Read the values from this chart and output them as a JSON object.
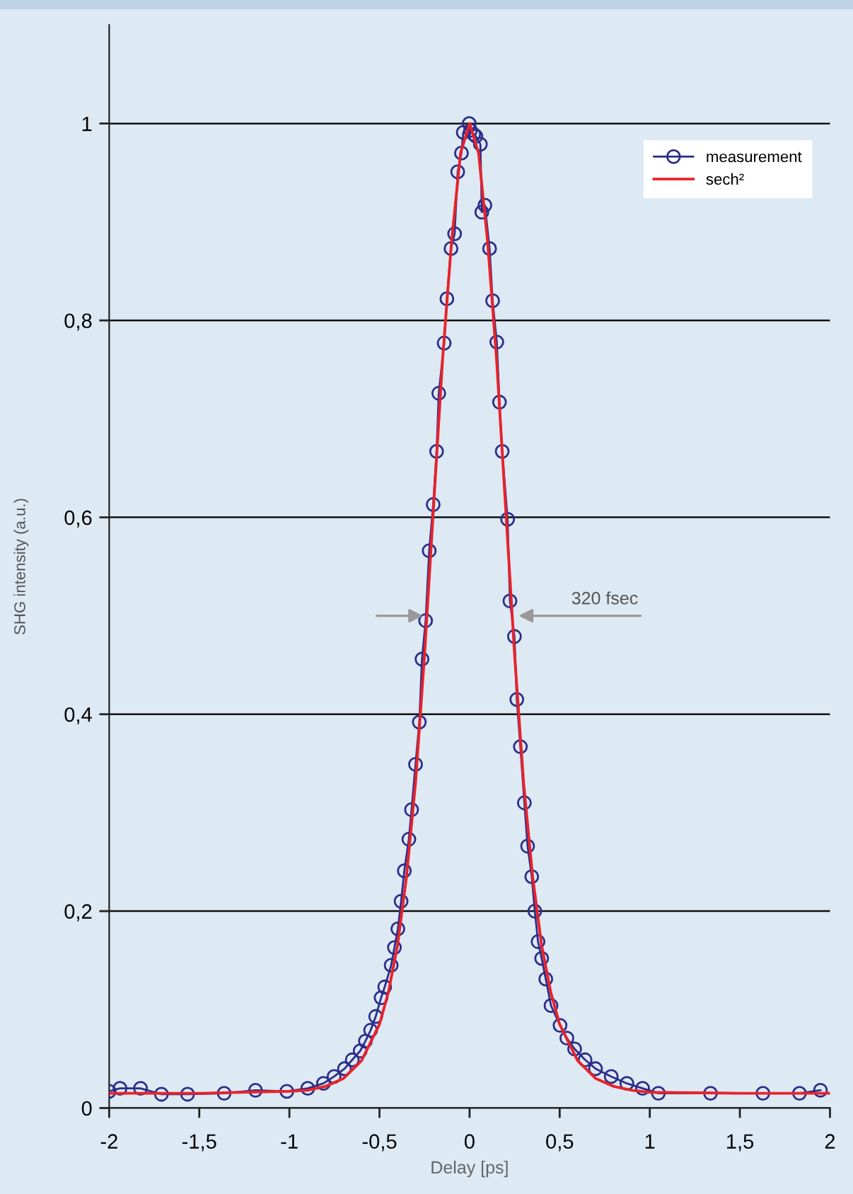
{
  "chart_data": {
    "type": "line",
    "xlabel": "Delay [ps]",
    "ylabel": "SHG intensity (a.u.)",
    "xlim": [
      -2,
      2
    ],
    "ylim": [
      0,
      1.1
    ],
    "xticks": [
      {
        "value": -2,
        "label": "-2"
      },
      {
        "value": -1.5,
        "label": "-1,5"
      },
      {
        "value": -1,
        "label": "-1"
      },
      {
        "value": -0.5,
        "label": "-0,5"
      },
      0,
      {
        "value": 0.5,
        "label": "0,5"
      },
      1,
      {
        "value": 1.5,
        "label": "1,5"
      },
      2
    ],
    "yticks": [
      0,
      {
        "value": 0.2,
        "label": "0,2"
      },
      {
        "value": 0.4,
        "label": "0,4"
      },
      {
        "value": 0.6,
        "label": "0,6"
      },
      {
        "value": 0.8,
        "label": "0,8"
      },
      1
    ],
    "grid": "y",
    "legend": "top right",
    "series": [
      {
        "name": "measurement",
        "color": "#2b2d8a",
        "marker": "circle",
        "x": [
          -2.0,
          -1.94,
          -1.826,
          -1.71,
          -1.565,
          -1.362,
          -1.188,
          -1.014,
          -0.898,
          -0.811,
          -0.752,
          -0.694,
          -0.651,
          -0.607,
          -0.578,
          -0.549,
          -0.521,
          -0.491,
          -0.471,
          -0.435,
          -0.417,
          -0.398,
          -0.38,
          -0.362,
          -0.337,
          -0.322,
          -0.3,
          -0.279,
          -0.264,
          -0.244,
          -0.224,
          -0.202,
          -0.183,
          -0.171,
          -0.141,
          -0.126,
          -0.103,
          -0.083,
          -0.066,
          -0.045,
          -0.035,
          -0.002,
          0.005,
          0.023,
          0.035,
          0.06,
          0.068,
          0.085,
          0.111,
          0.128,
          0.151,
          0.166,
          0.181,
          0.211,
          0.224,
          0.249,
          0.262,
          0.282,
          0.304,
          0.322,
          0.345,
          0.362,
          0.38,
          0.4,
          0.423,
          0.452,
          0.502,
          0.54,
          0.583,
          0.641,
          0.699,
          0.786,
          0.873,
          0.96,
          1.048,
          1.337,
          1.628,
          1.831,
          1.947
        ],
        "values": [
          0.017,
          0.02,
          0.02,
          0.014,
          0.014,
          0.015,
          0.018,
          0.017,
          0.02,
          0.025,
          0.032,
          0.04,
          0.049,
          0.058,
          0.068,
          0.079,
          0.093,
          0.112,
          0.123,
          0.145,
          0.163,
          0.182,
          0.21,
          0.241,
          0.273,
          0.303,
          0.349,
          0.392,
          0.456,
          0.495,
          0.566,
          0.613,
          0.667,
          0.726,
          0.777,
          0.822,
          0.873,
          0.888,
          0.951,
          0.97,
          0.991,
          1.0,
          0.993,
          0.989,
          0.987,
          0.979,
          0.91,
          0.917,
          0.873,
          0.82,
          0.778,
          0.717,
          0.667,
          0.598,
          0.515,
          0.479,
          0.415,
          0.367,
          0.31,
          0.266,
          0.235,
          0.2,
          0.169,
          0.152,
          0.131,
          0.104,
          0.084,
          0.071,
          0.06,
          0.049,
          0.04,
          0.032,
          0.025,
          0.02,
          0.015,
          0.015,
          0.015,
          0.015,
          0.018
        ]
      },
      {
        "name": "sech²",
        "color": "#e8232a",
        "marker": "none",
        "x": [
          -2,
          -1.5,
          -1,
          -0.9,
          -0.8,
          -0.7,
          -0.6,
          -0.5,
          -0.45,
          -0.4,
          -0.35,
          -0.3,
          -0.25,
          -0.2,
          -0.15,
          -0.1,
          -0.05,
          0,
          0.05,
          0.1,
          0.15,
          0.2,
          0.25,
          0.3,
          0.35,
          0.4,
          0.45,
          0.5,
          0.6,
          0.7,
          0.8,
          0.9,
          1,
          1.5,
          2
        ],
        "values": [
          0.015,
          0.015,
          0.017,
          0.018,
          0.022,
          0.03,
          0.048,
          0.085,
          0.118,
          0.165,
          0.235,
          0.33,
          0.46,
          0.61,
          0.76,
          0.88,
          0.97,
          1.0,
          0.97,
          0.88,
          0.76,
          0.61,
          0.46,
          0.33,
          0.235,
          0.165,
          0.118,
          0.085,
          0.048,
          0.03,
          0.022,
          0.018,
          0.016,
          0.015,
          0.015
        ]
      }
    ],
    "annotations": [
      {
        "text": "320 fsec",
        "x": 0.25,
        "y": 0.5
      }
    ]
  }
}
